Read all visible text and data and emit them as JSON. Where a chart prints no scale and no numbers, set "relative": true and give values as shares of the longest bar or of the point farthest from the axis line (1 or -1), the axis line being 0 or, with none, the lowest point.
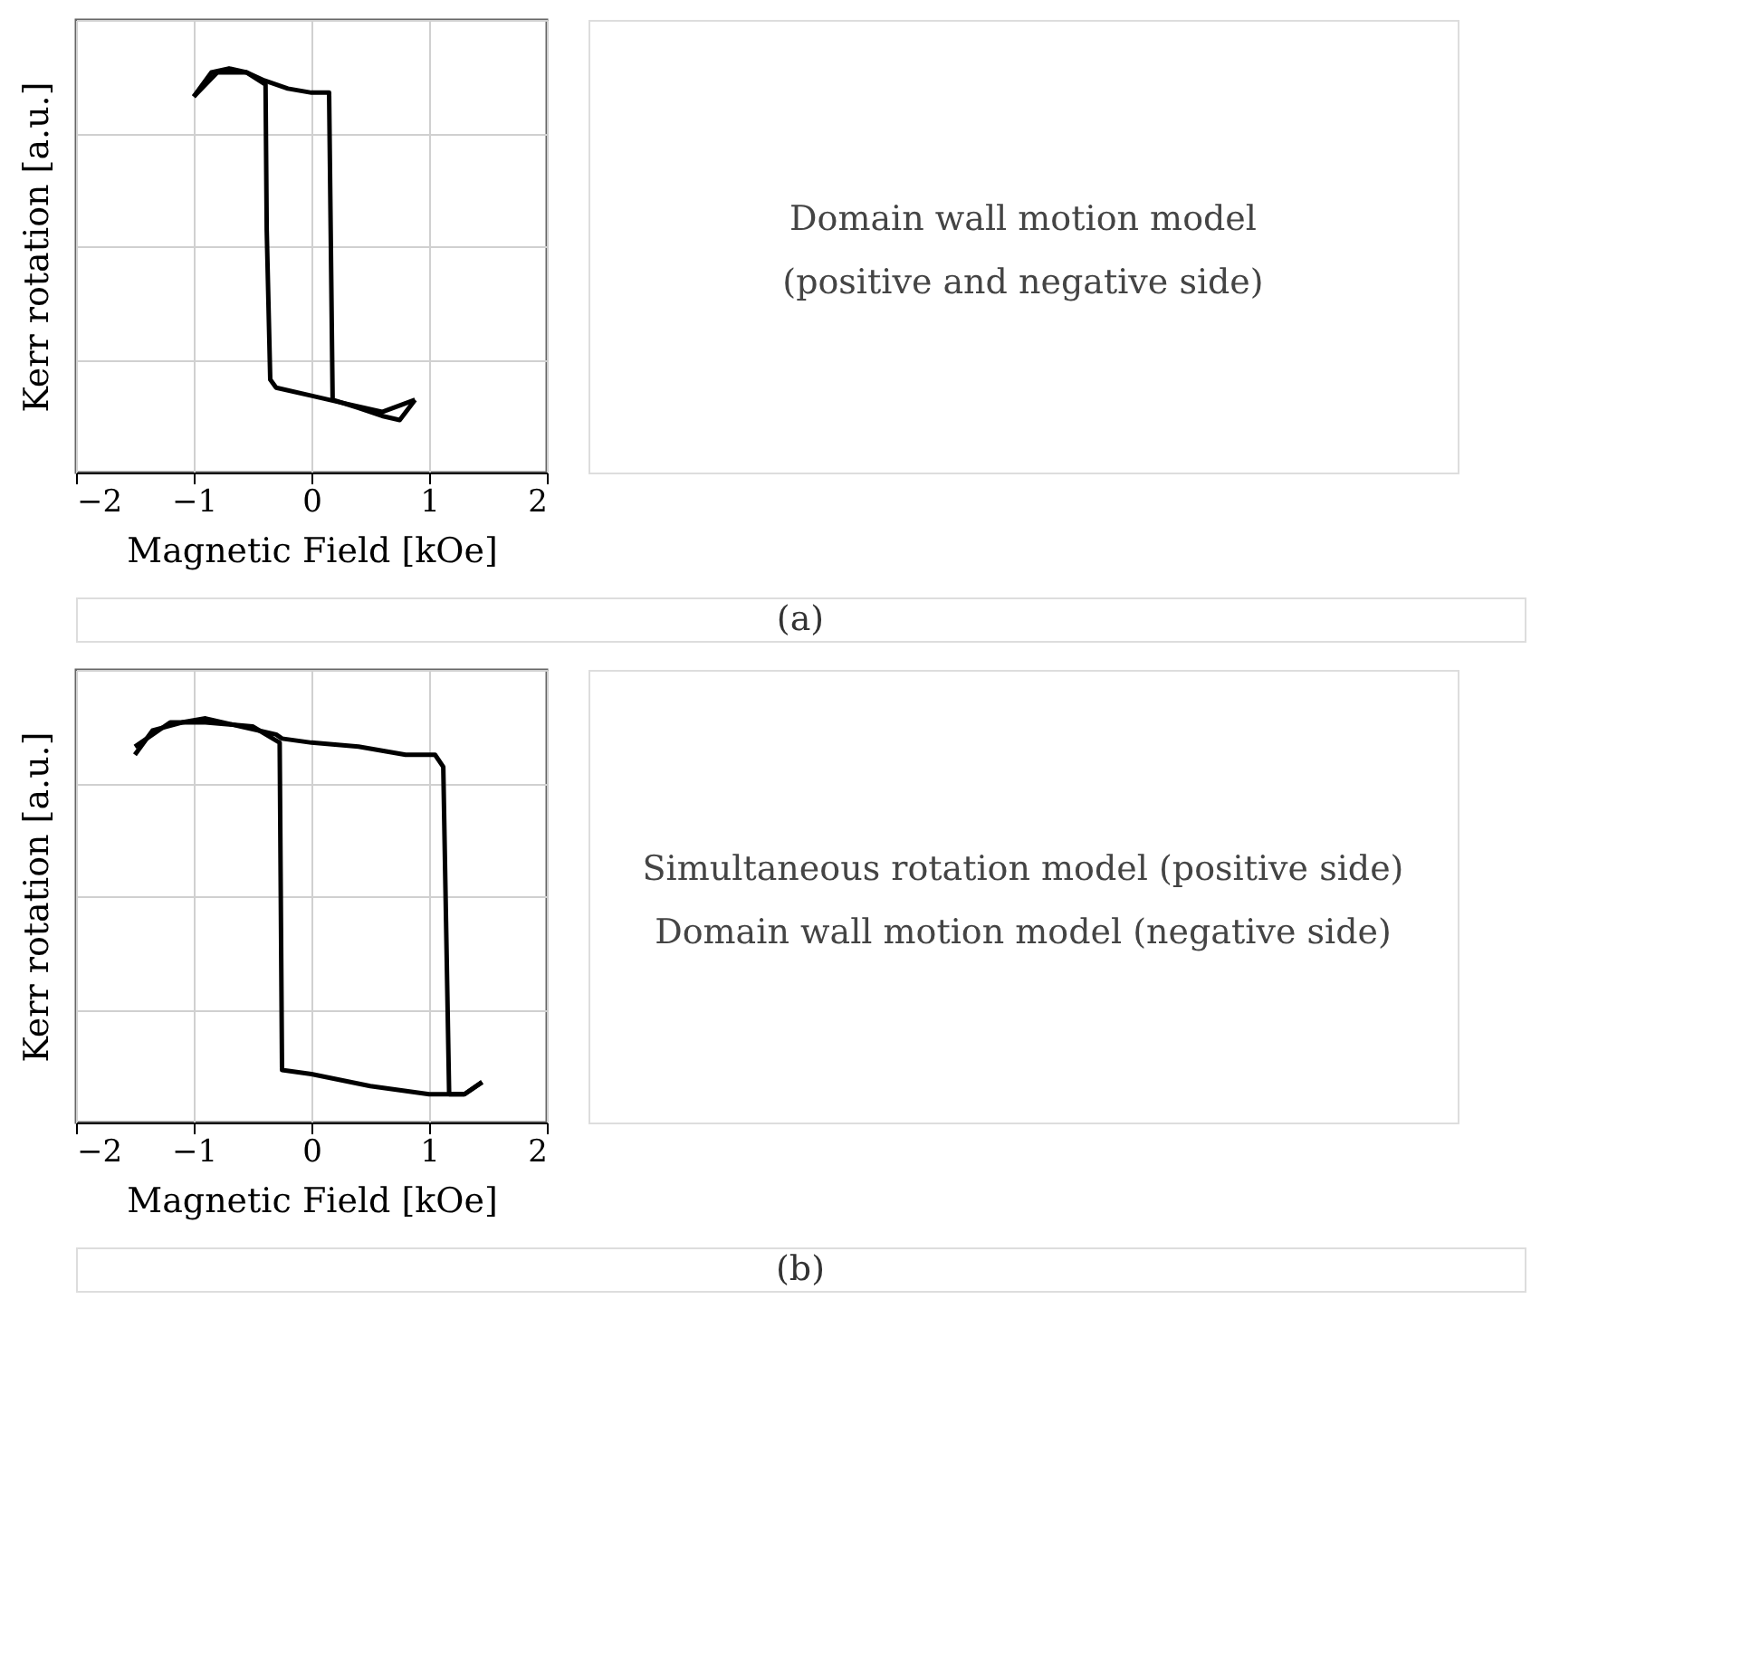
{
  "chart_data": [
    {
      "type": "line",
      "relative": true,
      "xlabel": "Magnetic Field [kOe]",
      "ylabel": "Kerr rotation [a.u.]",
      "xlim": [
        -2,
        2
      ],
      "xticks": [
        -2,
        -1,
        0,
        1,
        2
      ],
      "grid": true,
      "tick_labels": "x",
      "annotations": [
        "(a)"
      ],
      "series": [
        {
          "color": "#000000",
          "x": [
            -1,
            -0.85,
            -0.7,
            -0.55,
            -0.4,
            -0.2,
            0,
            0.15,
            0.18,
            0.4,
            0.6,
            0.75,
            0.88
          ],
          "values": [
            0.93,
            0.99,
            1.0,
            0.99,
            0.97,
            0.95,
            0.94,
            0.94,
            0.18,
            0.16,
            0.14,
            0.13,
            0.18
          ]
        },
        {
          "color": "#000000",
          "x": [
            0.88,
            0.6,
            0.3,
            0,
            -0.3,
            -0.35,
            -0.38,
            -0.39,
            -0.55,
            -0.8,
            -1
          ],
          "values": [
            0.18,
            0.15,
            0.17,
            0.19,
            0.21,
            0.23,
            0.6,
            0.96,
            0.99,
            0.99,
            0.93
          ]
        }
      ]
    },
    {
      "type": "other",
      "annotations": [
        "Domain wall motion model",
        "(positive and negative side)"
      ]
    },
    {
      "type": "line",
      "relative": true,
      "xlabel": "Magnetic Field [kOe]",
      "ylabel": "Kerr rotation [a.u.]",
      "xlim": [
        -2,
        2
      ],
      "xticks": [
        -2,
        -1,
        0,
        1,
        2
      ],
      "grid": true,
      "tick_labels": "x",
      "annotations": [
        "(b)"
      ],
      "series": [
        {
          "color": "#000000",
          "x": [
            -1.5,
            -1.35,
            -1.1,
            -0.9,
            -0.6,
            -0.3,
            -0.25,
            0,
            0.4,
            0.8,
            1.05,
            1.12,
            1.17,
            1.3,
            1.45
          ],
          "values": [
            0.91,
            0.97,
            0.99,
            1.0,
            0.98,
            0.96,
            0.95,
            0.94,
            0.93,
            0.91,
            0.91,
            0.88,
            0.07,
            0.07,
            0.1
          ]
        },
        {
          "color": "#000000",
          "x": [
            1.45,
            1.3,
            1.0,
            0.5,
            0,
            -0.25,
            -0.27,
            -0.5,
            -0.9,
            -1.2,
            -1.5
          ],
          "values": [
            0.1,
            0.07,
            0.07,
            0.09,
            0.12,
            0.13,
            0.94,
            0.98,
            0.99,
            0.99,
            0.93
          ]
        }
      ]
    },
    {
      "type": "other",
      "annotations": [
        "Simultaneous rotation model (positive side)",
        "Domain wall motion model (negative side)"
      ]
    }
  ]
}
